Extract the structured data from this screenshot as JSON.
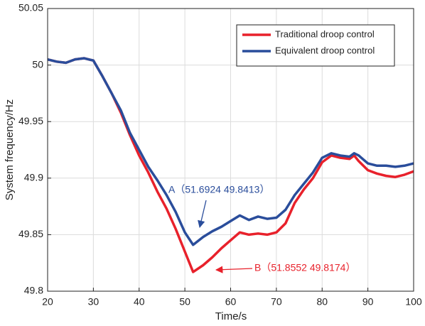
{
  "chart_data": {
    "type": "line",
    "x_label": "Time/s",
    "y_label": "System frequency/Hz",
    "x": [
      20,
      22,
      24,
      26,
      28,
      30,
      32,
      34,
      36,
      38,
      40,
      42,
      44,
      46,
      48,
      50,
      51.8,
      54,
      56,
      58,
      60,
      62,
      64,
      66,
      68,
      70,
      72,
      74,
      76,
      78,
      80,
      82,
      84,
      86,
      87,
      88,
      90,
      92,
      94,
      96,
      98,
      100
    ],
    "series": [
      {
        "name": "Traditional droop control",
        "color": "#e8212b",
        "values": [
          50.005,
          50.003,
          50.002,
          50.005,
          50.006,
          50.004,
          49.99,
          49.975,
          49.958,
          49.938,
          49.92,
          49.905,
          49.888,
          49.873,
          49.855,
          49.835,
          49.817,
          49.823,
          49.83,
          49.838,
          49.845,
          49.852,
          49.85,
          49.851,
          49.85,
          49.852,
          49.86,
          49.878,
          49.89,
          49.9,
          49.914,
          49.92,
          49.918,
          49.917,
          49.92,
          49.915,
          49.907,
          49.904,
          49.902,
          49.901,
          49.903,
          49.906
        ]
      },
      {
        "name": "Equivalent droop control",
        "color": "#2a4d9b",
        "values": [
          50.005,
          50.003,
          50.002,
          50.005,
          50.006,
          50.004,
          49.99,
          49.975,
          49.96,
          49.94,
          49.925,
          49.91,
          49.898,
          49.885,
          49.87,
          49.852,
          49.841,
          49.848,
          49.853,
          49.857,
          49.862,
          49.867,
          49.863,
          49.866,
          49.864,
          49.865,
          49.872,
          49.885,
          49.895,
          49.905,
          49.918,
          49.922,
          49.92,
          49.919,
          49.922,
          49.92,
          49.913,
          49.911,
          49.911,
          49.91,
          49.911,
          49.913
        ]
      }
    ],
    "annotations": [
      "A（51.6924  49.8413）",
      "B（51.8552  49.8174）"
    ],
    "xlim": [
      20,
      100
    ],
    "xticks": [
      20,
      30,
      40,
      50,
      60,
      70,
      80,
      90,
      100
    ],
    "ylim": [
      49.8,
      50.05
    ],
    "yticks": [
      49.8,
      49.85,
      49.9,
      49.95,
      50,
      50.05
    ],
    "grid": true,
    "legend": "upper right"
  }
}
